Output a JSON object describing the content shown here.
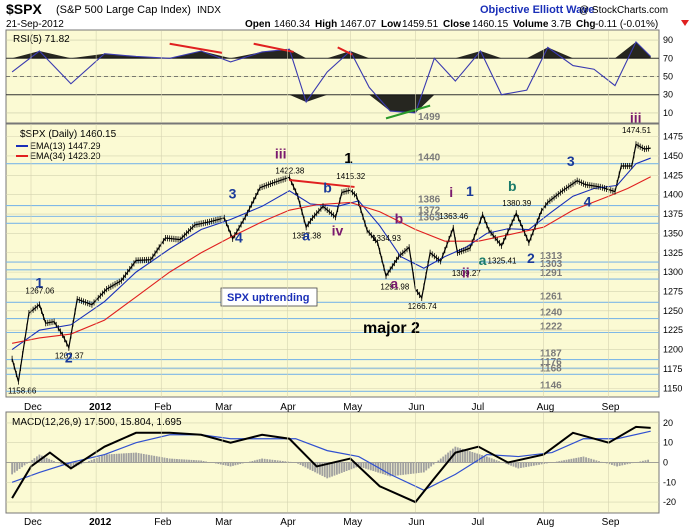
{
  "header": {
    "symbol": "$SPX",
    "name": "(S&P 500 Large Cap Index)",
    "exchange": "INDX",
    "date": "21-Sep-2012",
    "open_label": "Open",
    "open": "1460.34",
    "high_label": "High",
    "high": "1467.07",
    "low_label": "Low",
    "low": "1459.51",
    "close_label": "Close",
    "close": "1460.15",
    "volume_label": "Volume",
    "volume": "3.7B",
    "chg_label": "Chg",
    "chg": "-0.11 (-0.01%)",
    "source": "Objective Elliott Wave",
    "copyright": "@ StockCharts.com"
  },
  "colors": {
    "panel_bg": "#fbfad3",
    "price": "#000000",
    "ema13": "#1a2fb8",
    "ema34": "#e02020",
    "wave_purple": "#7a1a6e",
    "wave_blue": "#1a3a9a",
    "wave_teal": "#1a7a6a",
    "level_line": "#7fb8e6",
    "rsi_line": "#3a3ab0",
    "macd_hist": "#a0a0a0",
    "macd_signal": "#3050d0",
    "divergence": "#e02020",
    "uptrend_text": "#1a2fb8"
  },
  "chart_data": [
    {
      "type": "line",
      "title": "RSI(5) 71.82",
      "y_ticks": [
        10,
        30,
        50,
        70,
        90
      ],
      "ylim": [
        0,
        100
      ],
      "x": [
        "2011-11-22",
        "2011-12-05",
        "2011-12-20",
        "2012-01-05",
        "2012-01-20",
        "2012-02-05",
        "2012-02-20",
        "2012-03-05",
        "2012-03-20",
        "2012-04-02",
        "2012-04-10",
        "2012-04-20",
        "2012-05-01",
        "2012-05-10",
        "2012-05-20",
        "2012-06-01",
        "2012-06-10",
        "2012-06-20",
        "2012-07-02",
        "2012-07-12",
        "2012-07-24",
        "2012-08-03",
        "2012-08-15",
        "2012-08-25",
        "2012-09-04",
        "2012-09-14",
        "2012-09-21"
      ],
      "values": [
        55,
        78,
        42,
        75,
        72,
        70,
        78,
        66,
        77,
        80,
        22,
        55,
        78,
        38,
        12,
        10,
        70,
        45,
        78,
        30,
        35,
        82,
        62,
        58,
        40,
        88,
        72
      ],
      "annotations": [
        {
          "text": "1499",
          "type": "level"
        }
      ]
    },
    {
      "type": "line",
      "title": "$SPX (Daily) 1460.15",
      "ylim": [
        1140,
        1490
      ],
      "y_ticks": [
        1150,
        1175,
        1200,
        1225,
        1250,
        1275,
        1300,
        1325,
        1350,
        1375,
        1400,
        1425,
        1450,
        1475
      ],
      "x_ticks": [
        "Dec",
        "2012",
        "Feb",
        "Mar",
        "Apr",
        "May",
        "Jun",
        "Jul",
        "Aug",
        "Sep"
      ],
      "series": [
        {
          "name": "$SPX (Daily) 1460.15",
          "x": [
            "2011-11-22",
            "2011-11-25",
            "2011-11-30",
            "2011-12-05",
            "2011-12-08",
            "2011-12-12",
            "2011-12-16",
            "2011-12-19",
            "2011-12-23",
            "2011-12-30",
            "2012-01-06",
            "2012-01-13",
            "2012-01-20",
            "2012-01-27",
            "2012-02-03",
            "2012-02-10",
            "2012-02-17",
            "2012-02-24",
            "2012-03-02",
            "2012-03-06",
            "2012-03-12",
            "2012-03-19",
            "2012-03-26",
            "2012-04-02",
            "2012-04-06",
            "2012-04-10",
            "2012-04-13",
            "2012-04-18",
            "2012-04-24",
            "2012-04-27",
            "2012-05-01",
            "2012-05-04",
            "2012-05-09",
            "2012-05-14",
            "2012-05-18",
            "2012-05-24",
            "2012-05-29",
            "2012-06-01",
            "2012-06-04",
            "2012-06-08",
            "2012-06-13",
            "2012-06-19",
            "2012-06-21",
            "2012-06-27",
            "2012-07-03",
            "2012-07-06",
            "2012-07-12",
            "2012-07-19",
            "2012-07-25",
            "2012-07-31",
            "2012-08-03",
            "2012-08-10",
            "2012-08-17",
            "2012-08-21",
            "2012-08-28",
            "2012-09-04",
            "2012-09-07",
            "2012-09-12",
            "2012-09-14",
            "2012-09-18",
            "2012-09-21"
          ],
          "values": [
            1188,
            1158.66,
            1247,
            1258,
            1234,
            1236,
            1219,
            1202.37,
            1265,
            1258,
            1278,
            1289,
            1315,
            1316,
            1344,
            1342,
            1361,
            1365,
            1370,
            1343,
            1371,
            1409,
            1416,
            1422.38,
            1398,
            1358,
            1370,
            1385,
            1371,
            1403,
            1405.82,
            1398,
            1354,
            1338,
            1295,
            1320,
            1332,
            1278,
            1266.74,
            1325,
            1314,
            1357,
            1325,
            1331,
            1374,
            1354,
            1334,
            1376,
            1338,
            1379,
            1390,
            1405,
            1418,
            1413,
            1410,
            1404,
            1437,
            1437,
            1465,
            1459,
            1460.15
          ]
        },
        {
          "name": "EMA(13) 1447.29",
          "x": [
            "2011-11-22",
            "2011-12-05",
            "2011-12-20",
            "2012-01-05",
            "2012-01-20",
            "2012-02-05",
            "2012-02-20",
            "2012-03-05",
            "2012-03-20",
            "2012-04-02",
            "2012-04-12",
            "2012-04-25",
            "2012-05-05",
            "2012-05-15",
            "2012-05-25",
            "2012-06-05",
            "2012-06-15",
            "2012-06-25",
            "2012-07-05",
            "2012-07-15",
            "2012-07-25",
            "2012-08-05",
            "2012-08-15",
            "2012-08-25",
            "2012-09-05",
            "2012-09-14",
            "2012-09-21"
          ],
          "values": [
            1200,
            1225,
            1232,
            1262,
            1300,
            1330,
            1355,
            1368,
            1385,
            1405,
            1388,
            1385,
            1392,
            1360,
            1320,
            1305,
            1320,
            1332,
            1350,
            1356,
            1355,
            1378,
            1398,
            1408,
            1412,
            1440,
            1447.29
          ]
        },
        {
          "name": "EMA(34) 1423.20",
          "x": [
            "2011-11-22",
            "2011-12-05",
            "2011-12-20",
            "2012-01-05",
            "2012-01-20",
            "2012-02-05",
            "2012-02-20",
            "2012-03-05",
            "2012-03-20",
            "2012-04-02",
            "2012-04-15",
            "2012-05-01",
            "2012-05-15",
            "2012-06-01",
            "2012-06-15",
            "2012-07-01",
            "2012-07-15",
            "2012-08-01",
            "2012-08-15",
            "2012-09-01",
            "2012-09-10",
            "2012-09-21"
          ],
          "values": [
            1208,
            1215,
            1220,
            1238,
            1268,
            1300,
            1325,
            1345,
            1365,
            1380,
            1387,
            1390,
            1378,
            1355,
            1340,
            1340,
            1348,
            1358,
            1380,
            1398,
            1408,
            1423.2
          ]
        }
      ],
      "horizontal_levels": [
        {
          "value": 1499,
          "label": "1499"
        },
        {
          "value": 1440,
          "label": "1440"
        },
        {
          "value": 1386,
          "label": "1386"
        },
        {
          "value": 1372,
          "label": "1372"
        },
        {
          "value": 1363,
          "label": "1363"
        },
        {
          "value": 1313,
          "label": "1313"
        },
        {
          "value": 1303,
          "label": "1303"
        },
        {
          "value": 1291,
          "label": "1291"
        },
        {
          "value": 1261,
          "label": "1261"
        },
        {
          "value": 1240,
          "label": "1240"
        },
        {
          "value": 1222,
          "label": "1222"
        },
        {
          "value": 1187,
          "label": "1187"
        },
        {
          "value": 1176,
          "label": "1176"
        },
        {
          "value": 1168,
          "label": "1168"
        },
        {
          "value": 1146,
          "label": "1146"
        }
      ],
      "price_labels": [
        {
          "text": "1158.66",
          "x": "2011-11-25",
          "y": 1158.66
        },
        {
          "text": "1267.06",
          "x": "2011-12-05",
          "y": 1267.06
        },
        {
          "text": "1202.37",
          "x": "2011-12-19",
          "y": 1202.37
        },
        {
          "text": "1422.38",
          "x": "2012-04-02",
          "y": 1422.38
        },
        {
          "text": "1357.38",
          "x": "2012-04-10",
          "y": 1357.38
        },
        {
          "text": "1415.32",
          "x": "2012-05-01",
          "y": 1415.32
        },
        {
          "text": "1334.93",
          "x": "2012-05-18",
          "y": 1334.93
        },
        {
          "text": "1291.98",
          "x": "2012-05-22",
          "y": 1291.98
        },
        {
          "text": "1266.74",
          "x": "2012-06-04",
          "y": 1266.74
        },
        {
          "text": "1363.46",
          "x": "2012-06-19",
          "y": 1363.46
        },
        {
          "text": "1309.27",
          "x": "2012-06-25",
          "y": 1309.27
        },
        {
          "text": "1325.41",
          "x": "2012-07-12",
          "y": 1325.41
        },
        {
          "text": "1380.39",
          "x": "2012-07-19",
          "y": 1380.39
        },
        {
          "text": "1474.51",
          "x": "2012-09-14",
          "y": 1474.51
        }
      ],
      "wave_labels": [
        {
          "text": "1",
          "color": "blue",
          "x": "2011-12-05",
          "y": 1280
        },
        {
          "text": "2",
          "color": "blue",
          "x": "2011-12-19",
          "y": 1183
        },
        {
          "text": "3",
          "color": "blue",
          "x": "2012-03-06",
          "y": 1395
        },
        {
          "text": "4",
          "color": "blue",
          "x": "2012-03-09",
          "y": 1338
        },
        {
          "text": "iii",
          "color": "purple",
          "x": "2012-03-28",
          "y": 1447
        },
        {
          "text": "a",
          "color": "blue",
          "x": "2012-04-10",
          "y": 1341
        },
        {
          "text": "b",
          "color": "blue",
          "x": "2012-04-20",
          "y": 1403
        },
        {
          "text": "iv",
          "color": "purple",
          "x": "2012-04-24",
          "y": 1347
        },
        {
          "text": "1",
          "color": "black",
          "x": "2012-04-30",
          "y": 1441
        },
        {
          "text": "b",
          "color": "purple",
          "x": "2012-05-24",
          "y": 1363
        },
        {
          "text": "a",
          "color": "purple",
          "x": "2012-05-22",
          "y": 1279
        },
        {
          "text": "i",
          "color": "purple",
          "x": "2012-06-19",
          "y": 1397
        },
        {
          "text": "1",
          "color": "blue",
          "x": "2012-06-27",
          "y": 1398
        },
        {
          "text": "ii",
          "color": "purple",
          "x": "2012-06-25",
          "y": 1293
        },
        {
          "text": "a",
          "color": "teal",
          "x": "2012-07-03",
          "y": 1309
        },
        {
          "text": "b",
          "color": "teal",
          "x": "2012-07-17",
          "y": 1405
        },
        {
          "text": "2",
          "color": "blue",
          "x": "2012-07-26",
          "y": 1312
        },
        {
          "text": "3",
          "color": "blue",
          "x": "2012-08-14",
          "y": 1437
        },
        {
          "text": "4",
          "color": "blue",
          "x": "2012-08-22",
          "y": 1385
        },
        {
          "text": "iii",
          "color": "purple",
          "x": "2012-09-13",
          "y": 1493
        }
      ],
      "annotations": [
        {
          "text": "SPX uptrending"
        },
        {
          "text": "major 2"
        }
      ],
      "legend": [
        {
          "text": "$SPX (Daily) 1460.15"
        },
        {
          "text": "EMA(13) 1447.29"
        },
        {
          "text": "EMA(34) 1423.20"
        }
      ]
    },
    {
      "type": "line",
      "title": "MACD(12,26,9) 17.500, 15.804, 1.695",
      "ylim": [
        -25,
        25
      ],
      "y_ticks": [
        -20,
        -10,
        0,
        10,
        20
      ],
      "x_ticks": [
        "Dec",
        "2012",
        "Feb",
        "Mar",
        "Apr",
        "May",
        "Jun",
        "Jul",
        "Aug",
        "Sep"
      ],
      "series": [
        {
          "name": "MACD",
          "x": [
            "2011-11-22",
            "2011-12-01",
            "2011-12-10",
            "2011-12-20",
            "2012-01-05",
            "2012-01-20",
            "2012-02-05",
            "2012-02-20",
            "2012-03-05",
            "2012-03-20",
            "2012-04-02",
            "2012-04-15",
            "2012-05-01",
            "2012-05-15",
            "2012-06-01",
            "2012-06-10",
            "2012-06-20",
            "2012-07-01",
            "2012-07-15",
            "2012-08-01",
            "2012-08-15",
            "2012-09-01",
            "2012-09-14",
            "2012-09-21"
          ],
          "values": [
            -18,
            -2,
            5,
            -3,
            8,
            15,
            15,
            14,
            10,
            14,
            12,
            -2,
            2,
            -12,
            -20,
            -8,
            5,
            8,
            0,
            4,
            15,
            10,
            18,
            17.5
          ]
        },
        {
          "name": "Signal",
          "x": [
            "2011-11-22",
            "2011-12-05",
            "2011-12-20",
            "2012-01-05",
            "2012-01-20",
            "2012-02-05",
            "2012-02-20",
            "2012-03-05",
            "2012-03-20",
            "2012-04-05",
            "2012-04-20",
            "2012-05-05",
            "2012-05-20",
            "2012-06-05",
            "2012-06-20",
            "2012-07-05",
            "2012-07-20",
            "2012-08-05",
            "2012-08-20",
            "2012-09-05",
            "2012-09-21"
          ],
          "values": [
            -10,
            -5,
            0,
            4,
            10,
            14,
            14,
            12,
            12,
            12,
            6,
            3,
            -6,
            -14,
            -6,
            4,
            3,
            5,
            12,
            12,
            15.804
          ]
        },
        {
          "name": "Histogram",
          "x": [
            "2011-11-22",
            "2011-12-05",
            "2011-12-20",
            "2012-01-05",
            "2012-01-20",
            "2012-02-05",
            "2012-02-20",
            "2012-03-05",
            "2012-03-20",
            "2012-04-05",
            "2012-04-20",
            "2012-05-05",
            "2012-05-20",
            "2012-06-05",
            "2012-06-20",
            "2012-07-05",
            "2012-07-20",
            "2012-08-05",
            "2012-08-20",
            "2012-09-05",
            "2012-09-21"
          ],
          "values": [
            -6,
            4,
            -3,
            4,
            5,
            2,
            1,
            -2,
            2,
            0,
            -8,
            -2,
            -7,
            -5,
            8,
            3,
            -3,
            0,
            3,
            -2,
            1.695
          ]
        }
      ]
    }
  ]
}
